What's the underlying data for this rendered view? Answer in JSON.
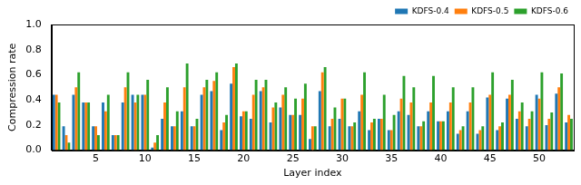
{
  "chart_data": {
    "type": "bar",
    "x_label": "Layer index",
    "y_label": "Compression rate",
    "categories": [
      null,
      null,
      null,
      null,
      5,
      null,
      null,
      null,
      null,
      10,
      null,
      null,
      null,
      null,
      15,
      null,
      null,
      null,
      null,
      20,
      null,
      null,
      null,
      null,
      25,
      null,
      null,
      null,
      null,
      30,
      null,
      null,
      null,
      null,
      35,
      null,
      null,
      null,
      null,
      40,
      null,
      null,
      null,
      null,
      45,
      null,
      null,
      null,
      null,
      50,
      null,
      null,
      null
    ],
    "series": [
      {
        "name": "KDFS-0.4",
        "color": "#1f77b4",
        "values": [
          0.44,
          0.19,
          0.44,
          0.38,
          0.19,
          0.38,
          0.12,
          0.38,
          0.44,
          0.44,
          0.02,
          0.25,
          0.19,
          0.31,
          0.19,
          0.44,
          0.47,
          0.16,
          0.53,
          0.27,
          0.25,
          0.47,
          0.22,
          0.34,
          0.28,
          0.28,
          0.09,
          0.47,
          0.19,
          0.25,
          0.19,
          0.31,
          0.16,
          0.25,
          0.16,
          0.31,
          0.28,
          0.19,
          0.31,
          0.23,
          0.31,
          0.13,
          0.31,
          0.13,
          0.42,
          0.16,
          0.41,
          0.25,
          0.19,
          0.44,
          0.2,
          0.45,
          0.22
        ]
      },
      {
        "name": "KDFS-0.5",
        "color": "#ff7f0e",
        "values": [
          0.44,
          0.12,
          0.5,
          0.38,
          0.19,
          0.31,
          0.12,
          0.5,
          0.38,
          0.44,
          0.06,
          0.38,
          0.19,
          0.5,
          0.19,
          0.5,
          0.55,
          0.22,
          0.66,
          0.31,
          0.44,
          0.5,
          0.34,
          0.44,
          0.28,
          0.41,
          0.19,
          0.62,
          0.25,
          0.41,
          0.19,
          0.44,
          0.22,
          0.25,
          0.16,
          0.41,
          0.38,
          0.19,
          0.38,
          0.23,
          0.38,
          0.16,
          0.38,
          0.16,
          0.44,
          0.19,
          0.44,
          0.31,
          0.25,
          0.41,
          0.25,
          0.5,
          0.28
        ]
      },
      {
        "name": "KDFS-0.6",
        "color": "#2ca02c",
        "values": [
          0.38,
          0.06,
          0.62,
          0.38,
          0.12,
          0.44,
          0.12,
          0.62,
          0.44,
          0.56,
          0.12,
          0.5,
          0.31,
          0.69,
          0.25,
          0.56,
          0.62,
          0.28,
          0.69,
          0.31,
          0.56,
          0.56,
          0.38,
          0.5,
          0.41,
          0.53,
          0.19,
          0.66,
          0.34,
          0.41,
          0.22,
          0.62,
          0.25,
          0.44,
          0.28,
          0.59,
          0.5,
          0.23,
          0.59,
          0.23,
          0.5,
          0.19,
          0.5,
          0.19,
          0.62,
          0.22,
          0.56,
          0.38,
          0.31,
          0.62,
          0.3,
          0.61,
          0.25
        ]
      }
    ],
    "ylim": [
      0,
      1.0
    ],
    "yticks": [
      {
        "value": 0,
        "label": "0.0"
      },
      {
        "value": 0.2,
        "label": "0.2"
      },
      {
        "value": 0.4,
        "label": "0.4"
      },
      {
        "value": 0.6,
        "label": "0.6"
      },
      {
        "value": 0.8,
        "label": "0.8"
      },
      {
        "value": 1.0,
        "label": "1.0"
      }
    ],
    "grid": false,
    "legend": "upper right"
  }
}
